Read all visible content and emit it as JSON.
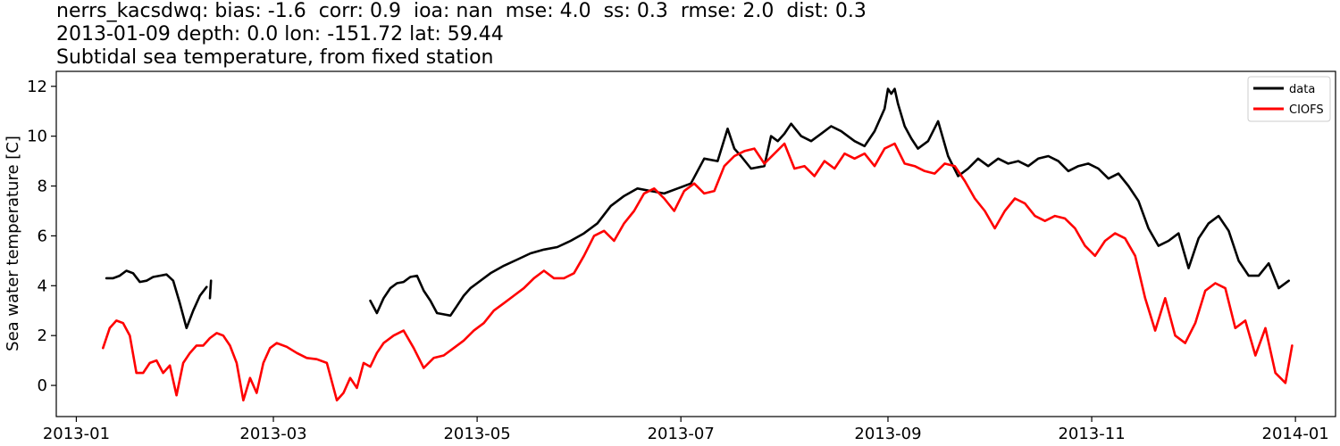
{
  "title_lines": [
    "nerrs_kacsdwq: bias: -1.6  corr: 0.9  ioa: nan  mse: 4.0  ss: 0.3  rmse: 2.0  dist: 0.3",
    "2013-01-09 depth: 0.0 lon: -151.72 lat: 59.44",
    "Subtidal sea temperature, from fixed station"
  ],
  "chart_data": {
    "type": "line",
    "ylabel": "Sea water temperature [C]",
    "xlabel": "",
    "xlim": [
      "2012-12-26",
      "2014-01-13"
    ],
    "ylim": [
      -1.25,
      12.6
    ],
    "grid": false,
    "legend_position": "top-right",
    "x_ticks": [
      "2013-01",
      "2013-03",
      "2013-05",
      "2013-07",
      "2013-09",
      "2013-11",
      "2014-01"
    ],
    "y_ticks": [
      0,
      2,
      4,
      6,
      8,
      10,
      12
    ],
    "series": [
      {
        "name": "data",
        "color": "#000000",
        "segments": [
          {
            "x": [
              "2013-01-10",
              "2013-01-12",
              "2013-01-14",
              "2013-01-16",
              "2013-01-18",
              "2013-01-20",
              "2013-01-22",
              "2013-01-24",
              "2013-01-26",
              "2013-01-28",
              "2013-01-30",
              "2013-02-01",
              "2013-02-03",
              "2013-02-05",
              "2013-02-07",
              "2013-02-09"
            ],
            "y": [
              4.3,
              4.3,
              4.4,
              4.6,
              4.5,
              4.15,
              4.2,
              4.35,
              4.4,
              4.45,
              4.2,
              3.3,
              2.3,
              3.0,
              3.6,
              3.95
            ]
          },
          {
            "x": [
              "2013-02-10"
            ],
            "y": [
              3.5
            ]
          },
          {
            "x": [
              "2013-03-30",
              "2013-04-01",
              "2013-04-03",
              "2013-04-05",
              "2013-04-07",
              "2013-04-09",
              "2013-04-11",
              "2013-04-13",
              "2013-04-15",
              "2013-04-17",
              "2013-04-19",
              "2013-04-21",
              "2013-04-23",
              "2013-04-25",
              "2013-04-27",
              "2013-04-29",
              "2013-05-01",
              "2013-05-05",
              "2013-05-09",
              "2013-05-13",
              "2013-05-17",
              "2013-05-21",
              "2013-05-25",
              "2013-05-29",
              "2013-06-02",
              "2013-06-06",
              "2013-06-10",
              "2013-06-14",
              "2013-06-18",
              "2013-06-22",
              "2013-06-26",
              "2013-06-30",
              "2013-07-04",
              "2013-07-08",
              "2013-07-12",
              "2013-07-15",
              "2013-07-17",
              "2013-07-19",
              "2013-07-22",
              "2013-07-26",
              "2013-07-28",
              "2013-07-30",
              "2013-08-01",
              "2013-08-03",
              "2013-08-06",
              "2013-08-09",
              "2013-08-12",
              "2013-08-15",
              "2013-08-18",
              "2013-08-22",
              "2013-08-25",
              "2013-08-28",
              "2013-08-31",
              "2013-09-01",
              "2013-09-02",
              "2013-09-03",
              "2013-09-04",
              "2013-09-06",
              "2013-09-08",
              "2013-09-10",
              "2013-09-13",
              "2013-09-16",
              "2013-09-19",
              "2013-09-22",
              "2013-09-25",
              "2013-09-28",
              "2013-10-01",
              "2013-10-04",
              "2013-10-07",
              "2013-10-10",
              "2013-10-13",
              "2013-10-16",
              "2013-10-19",
              "2013-10-22",
              "2013-10-25",
              "2013-10-28",
              "2013-10-31",
              "2013-11-03",
              "2013-11-06",
              "2013-11-09",
              "2013-11-12",
              "2013-11-15",
              "2013-11-18",
              "2013-11-21",
              "2013-11-24",
              "2013-11-27",
              "2013-11-30",
              "2013-12-03",
              "2013-12-06",
              "2013-12-09",
              "2013-12-12",
              "2013-12-15",
              "2013-12-18",
              "2013-12-21",
              "2013-12-24",
              "2013-12-27",
              "2013-12-30"
            ],
            "y": [
              3.4,
              2.9,
              3.5,
              3.9,
              4.1,
              4.15,
              4.35,
              4.4,
              3.8,
              3.4,
              2.9,
              2.85,
              2.8,
              3.2,
              3.6,
              3.9,
              4.1,
              4.5,
              4.8,
              5.05,
              5.3,
              5.45,
              5.55,
              5.8,
              6.1,
              6.5,
              7.2,
              7.6,
              7.9,
              7.8,
              7.7,
              7.9,
              8.1,
              9.1,
              9.0,
              10.3,
              9.5,
              9.2,
              8.7,
              8.8,
              10.0,
              9.8,
              10.1,
              10.5,
              10.0,
              9.8,
              10.1,
              10.4,
              10.2,
              9.8,
              9.6,
              10.2,
              11.1,
              11.9,
              11.7,
              11.9,
              11.3,
              10.4,
              9.9,
              9.5,
              9.8,
              10.6,
              9.2,
              8.4,
              8.7,
              9.1,
              8.8,
              9.1,
              8.9,
              9.0,
              8.8,
              9.1,
              9.2,
              9.0,
              8.6,
              8.8,
              8.9,
              8.7,
              8.3,
              8.5,
              8.0,
              7.4,
              6.3,
              5.6,
              5.8,
              6.1,
              4.7,
              5.9,
              6.5,
              6.8,
              6.2,
              5.0,
              4.4,
              4.4,
              4.9,
              3.9,
              4.2
            ]
          }
        ]
      },
      {
        "name": "CIOFS",
        "color": "#ff0000",
        "segments": [
          {
            "x": [
              "2013-01-09",
              "2013-01-11",
              "2013-01-13",
              "2013-01-15",
              "2013-01-17",
              "2013-01-19",
              "2013-01-21",
              "2013-01-23",
              "2013-01-25",
              "2013-01-27",
              "2013-01-29",
              "2013-01-31",
              "2013-02-02",
              "2013-02-04",
              "2013-02-06",
              "2013-02-08",
              "2013-02-10",
              "2013-02-12",
              "2013-02-14",
              "2013-02-16",
              "2013-02-18",
              "2013-02-20",
              "2013-02-22",
              "2013-02-24",
              "2013-02-26",
              "2013-02-28",
              "2013-03-02",
              "2013-03-05",
              "2013-03-08",
              "2013-03-11",
              "2013-03-14",
              "2013-03-17",
              "2013-03-20",
              "2013-03-22",
              "2013-03-24",
              "2013-03-26",
              "2013-03-28",
              "2013-03-30",
              "2013-04-01",
              "2013-04-03",
              "2013-04-06",
              "2013-04-09",
              "2013-04-12",
              "2013-04-15",
              "2013-04-18",
              "2013-04-21",
              "2013-04-24",
              "2013-04-27",
              "2013-04-30",
              "2013-05-03",
              "2013-05-06",
              "2013-05-09",
              "2013-05-12",
              "2013-05-15",
              "2013-05-18",
              "2013-05-21",
              "2013-05-24",
              "2013-05-27",
              "2013-05-30",
              "2013-06-02",
              "2013-06-05",
              "2013-06-08",
              "2013-06-11",
              "2013-06-14",
              "2013-06-17",
              "2013-06-20",
              "2013-06-23",
              "2013-06-26",
              "2013-06-29",
              "2013-07-02",
              "2013-07-05",
              "2013-07-08",
              "2013-07-11",
              "2013-07-14",
              "2013-07-17",
              "2013-07-20",
              "2013-07-23",
              "2013-07-26",
              "2013-07-29",
              "2013-08-01",
              "2013-08-04",
              "2013-08-07",
              "2013-08-10",
              "2013-08-13",
              "2013-08-16",
              "2013-08-19",
              "2013-08-22",
              "2013-08-25",
              "2013-08-28",
              "2013-08-31",
              "2013-09-03",
              "2013-09-06",
              "2013-09-09",
              "2013-09-12",
              "2013-09-15",
              "2013-09-18",
              "2013-09-21",
              "2013-09-24",
              "2013-09-27",
              "2013-09-30",
              "2013-10-03",
              "2013-10-06",
              "2013-10-09",
              "2013-10-12",
              "2013-10-15",
              "2013-10-18",
              "2013-10-21",
              "2013-10-24",
              "2013-10-27",
              "2013-10-30",
              "2013-11-02",
              "2013-11-05",
              "2013-11-08",
              "2013-11-11",
              "2013-11-14",
              "2013-11-17",
              "2013-11-20",
              "2013-11-23",
              "2013-11-26",
              "2013-11-29",
              "2013-12-02",
              "2013-12-05",
              "2013-12-08",
              "2013-12-11",
              "2013-12-14",
              "2013-12-17",
              "2013-12-20",
              "2013-12-23",
              "2013-12-26",
              "2013-12-29",
              "2013-12-31"
            ],
            "y": [
              1.5,
              2.3,
              2.6,
              2.5,
              2.0,
              0.5,
              0.5,
              0.9,
              1.0,
              0.5,
              0.8,
              -0.4,
              0.9,
              1.3,
              1.6,
              1.6,
              1.9,
              2.1,
              2.0,
              1.6,
              0.9,
              -0.6,
              0.3,
              -0.3,
              0.9,
              1.5,
              1.7,
              1.55,
              1.3,
              1.1,
              1.05,
              0.9,
              -0.6,
              -0.3,
              0.3,
              -0.1,
              0.9,
              0.75,
              1.3,
              1.7,
              2.0,
              2.2,
              1.5,
              0.7,
              1.1,
              1.2,
              1.5,
              1.8,
              2.2,
              2.5,
              3.0,
              3.3,
              3.6,
              3.9,
              4.3,
              4.6,
              4.3,
              4.3,
              4.5,
              5.2,
              6.0,
              6.2,
              5.8,
              6.5,
              7.0,
              7.7,
              7.9,
              7.5,
              7.0,
              7.8,
              8.1,
              7.7,
              7.8,
              8.8,
              9.2,
              9.4,
              9.5,
              8.9,
              9.3,
              9.7,
              8.7,
              8.8,
              8.4,
              9.0,
              8.7,
              9.3,
              9.1,
              9.3,
              8.8,
              9.5,
              9.7,
              8.9,
              8.8,
              8.6,
              8.5,
              8.9,
              8.8,
              8.2,
              7.5,
              7.0,
              6.3,
              7.0,
              7.5,
              7.3,
              6.8,
              6.6,
              6.8,
              6.7,
              6.3,
              5.6,
              5.2,
              5.8,
              6.1,
              5.9,
              5.2,
              3.5,
              2.2,
              3.5,
              2.0,
              1.7,
              2.5,
              3.8,
              4.1,
              3.9,
              2.3,
              2.6,
              1.2,
              2.3,
              0.5,
              0.1,
              1.6
            ]
          }
        ]
      }
    ]
  }
}
